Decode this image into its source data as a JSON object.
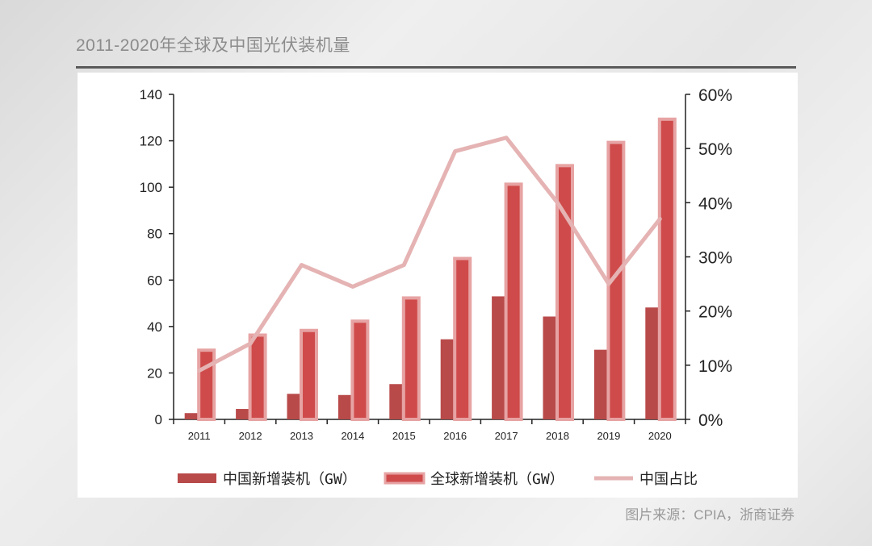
{
  "header": {
    "title": "2011-2020年全球及中国光伏装机量"
  },
  "footer": {
    "source": "图片来源：CPIA，浙商证券"
  },
  "colors": {
    "china_bar": "#b94a4a",
    "global_bar": "#cf4b4b",
    "global_bar_border": "#e7a3a3",
    "share_line": "#e5b3b3",
    "axis": "#222222"
  },
  "chart_data": {
    "type": "bar",
    "categories": [
      "2011",
      "2012",
      "2013",
      "2014",
      "2015",
      "2016",
      "2017",
      "2018",
      "2019",
      "2020"
    ],
    "series": [
      {
        "name": "中国新增装机（GW）",
        "type": "bar",
        "axis": "left",
        "values": [
          2.7,
          4.5,
          11,
          10.5,
          15.2,
          34.5,
          53,
          44.3,
          30,
          48.2
        ]
      },
      {
        "name": "全球新增装机（GW）",
        "type": "bar",
        "axis": "left",
        "values": [
          30.5,
          37,
          39,
          43,
          53,
          70,
          102,
          110,
          120,
          130
        ]
      },
      {
        "name": "中国占比",
        "type": "line",
        "axis": "right",
        "values": [
          0.09,
          0.14,
          0.285,
          0.245,
          0.285,
          0.495,
          0.52,
          0.4,
          0.25,
          0.37
        ]
      }
    ],
    "y_left": {
      "min": 0,
      "max": 140,
      "ticks": [
        "0",
        "20",
        "40",
        "60",
        "80",
        "100",
        "120",
        "140"
      ]
    },
    "y_right": {
      "min": 0,
      "max": 0.6,
      "ticks": [
        "0%",
        "10%",
        "20%",
        "30%",
        "40%",
        "50%",
        "60%"
      ]
    },
    "legend": {
      "position": "bottom"
    },
    "grid": false
  }
}
